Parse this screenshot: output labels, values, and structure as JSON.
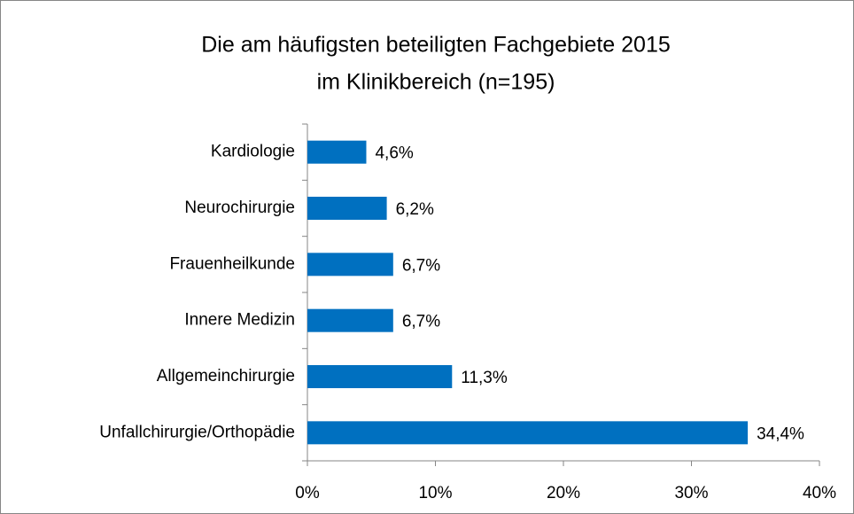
{
  "chart_data": {
    "type": "bar",
    "orientation": "horizontal",
    "title": [
      "Die am häufigsten beteiligten Fachgebiete 2015",
      "im Klinikbereich (n=195)"
    ],
    "categories": [
      "Kardiologie",
      "Neurochirurgie",
      "Frauenheilkunde",
      "Innere Medizin",
      "Allgemeinchirurgie",
      "Unfallchirurgie/Orthopädie"
    ],
    "values": [
      4.6,
      6.2,
      6.7,
      6.7,
      11.3,
      34.4
    ],
    "value_labels": [
      "4,6%",
      "6,2%",
      "6,7%",
      "6,7%",
      "11,3%",
      "34,4%"
    ],
    "color": "#0070c0",
    "xlim": [
      0,
      40
    ],
    "xticks": [
      {
        "value": 0,
        "label": "0%"
      },
      {
        "value": 10,
        "label": "10%"
      },
      {
        "value": 20,
        "label": "20%"
      },
      {
        "value": 30,
        "label": "30%"
      },
      {
        "value": 40,
        "label": "40%"
      }
    ],
    "grid": false
  }
}
